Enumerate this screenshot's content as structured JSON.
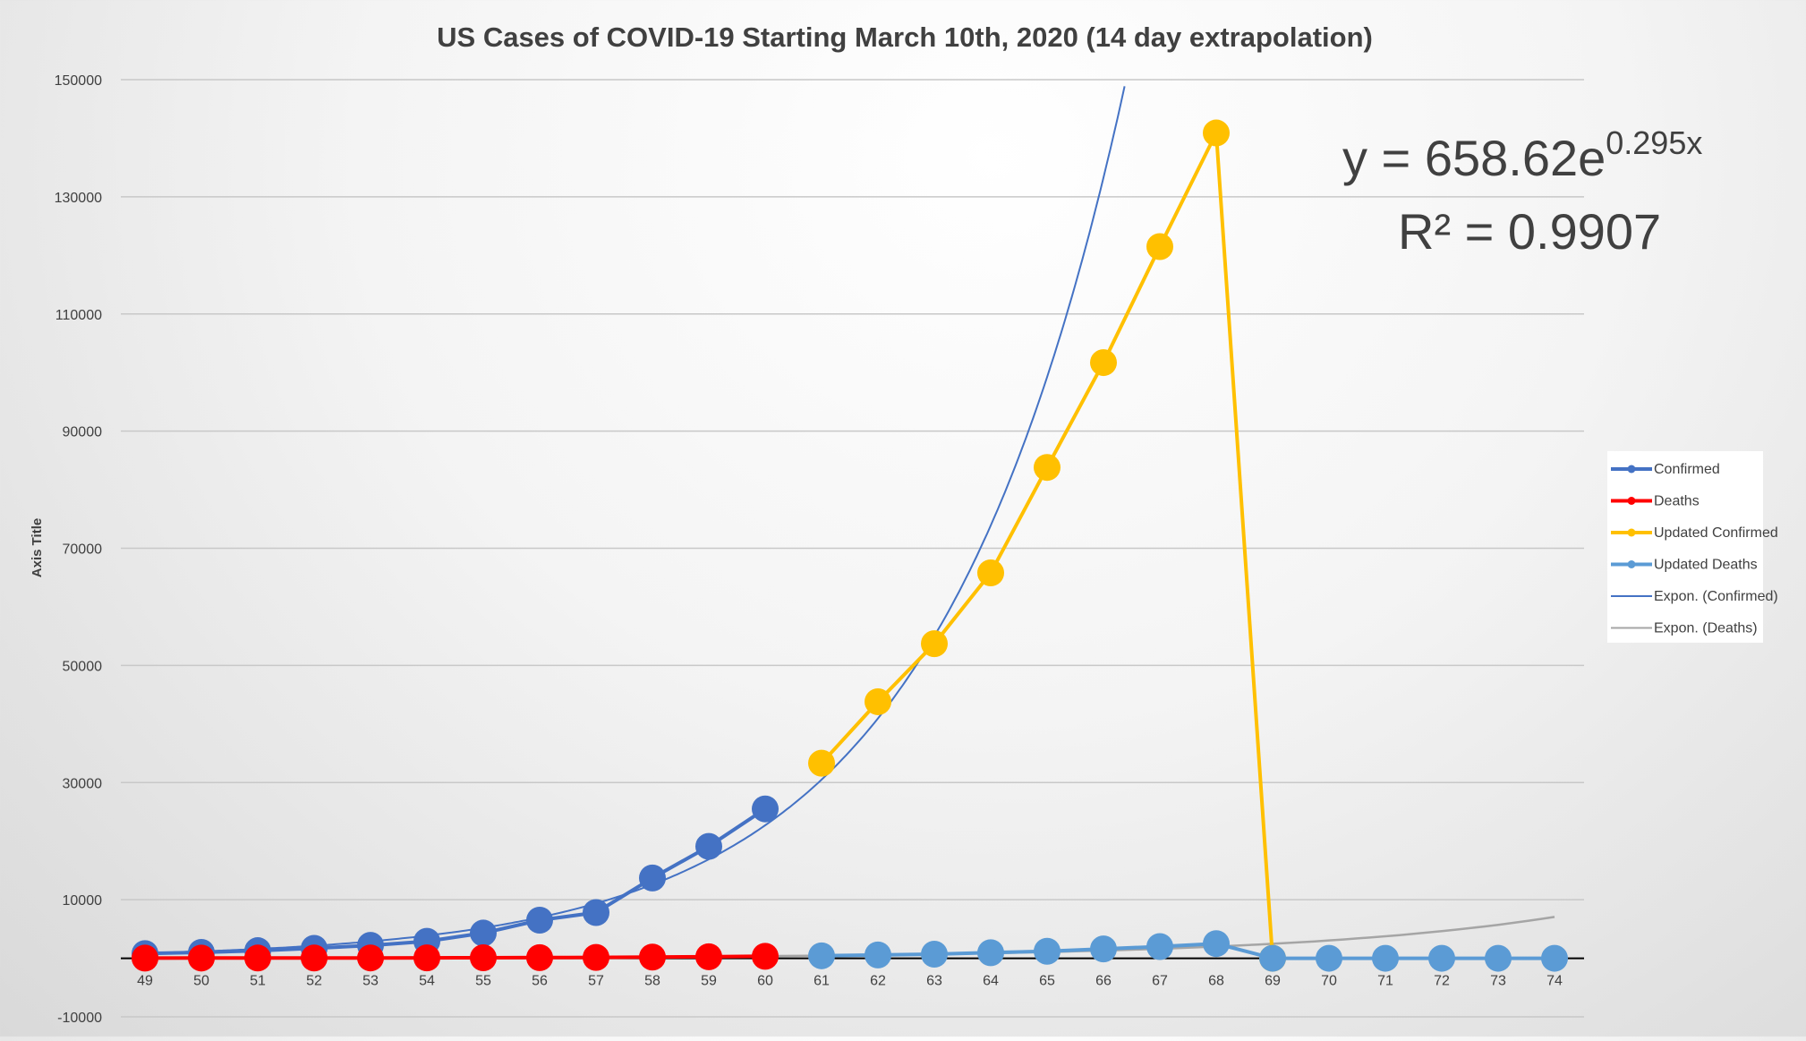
{
  "chart_data": {
    "type": "line",
    "title": "US Cases of COVID-19 Starting March 10th, 2020 (14 day extrapolation)",
    "ylabel": "Axis Title",
    "xlabel": "",
    "ylim": [
      -10000,
      150000
    ],
    "yticks": [
      -10000,
      10000,
      30000,
      50000,
      70000,
      90000,
      110000,
      130000,
      150000
    ],
    "x": [
      49,
      50,
      51,
      52,
      53,
      54,
      55,
      56,
      57,
      58,
      59,
      60,
      61,
      62,
      63,
      64,
      65,
      66,
      67,
      68,
      69,
      70,
      71,
      72,
      73,
      74
    ],
    "grid": true,
    "legend_position": "right",
    "equation": {
      "base": "y = 658.62e",
      "exponent": "0.295x",
      "r2": "R² = 0.9907"
    },
    "series": [
      {
        "name": "Confirmed",
        "color": "#4472c4",
        "marker": true,
        "x": [
          49,
          50,
          51,
          52,
          53,
          54,
          55,
          56,
          57,
          58,
          59,
          60
        ],
        "y": [
          800,
          1000,
          1300,
          1700,
          2200,
          2900,
          4300,
          6500,
          7800,
          13700,
          19100,
          25500
        ]
      },
      {
        "name": "Deaths",
        "color": "#ff0000",
        "marker": true,
        "x": [
          49,
          50,
          51,
          52,
          53,
          54,
          55,
          56,
          57,
          58,
          59,
          60
        ],
        "y": [
          28,
          36,
          40,
          47,
          57,
          69,
          87,
          110,
          150,
          206,
          260,
          340
        ]
      },
      {
        "name": "Updated Confirmed",
        "color": "#ffc000",
        "marker": true,
        "x": [
          61,
          62,
          63,
          64,
          65,
          66,
          67,
          68,
          69
        ],
        "y": [
          33300,
          43800,
          53700,
          65800,
          83800,
          101700,
          121500,
          140900,
          0
        ]
      },
      {
        "name": "Updated Deaths",
        "color": "#5b9bd5",
        "marker": true,
        "x": [
          61,
          62,
          63,
          64,
          65,
          66,
          67,
          68,
          69,
          70,
          71,
          72,
          73,
          74
        ],
        "y": [
          420,
          560,
          700,
          950,
          1200,
          1600,
          2000,
          2500,
          0,
          0,
          0,
          0,
          0,
          0
        ]
      },
      {
        "name": "Expon. (Confirmed)",
        "color": "#4472c4",
        "marker": false,
        "trendline": true
      },
      {
        "name": "Expon. (Deaths)",
        "color": "#a5a5a5",
        "marker": false,
        "trendline": true
      }
    ]
  }
}
